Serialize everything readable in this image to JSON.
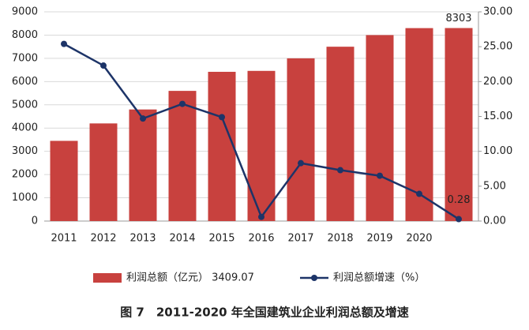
{
  "chart_data": {
    "type": "bar-line",
    "title": "图 7　2011-2020 年全国建筑业企业利润总额及增速",
    "categories": [
      "2011",
      "2012",
      "2013",
      "2014",
      "2015",
      "2016",
      "2017",
      "2018",
      "2019",
      "2020",
      null
    ],
    "series": [
      {
        "name": "利润总额（亿元） 3409.07",
        "type": "bar",
        "color": "#c8413e",
        "values": [
          3450,
          4200,
          4800,
          5600,
          6420,
          6460,
          7000,
          7500,
          8000,
          8300,
          8303
        ]
      },
      {
        "name": "利润总额增速（%）",
        "type": "line",
        "axis": "y2",
        "color": "#1d3468",
        "values": [
          25.4,
          22.3,
          14.7,
          16.8,
          14.9,
          0.6,
          8.3,
          7.3,
          6.5,
          3.9,
          0.28
        ]
      }
    ],
    "ylim": [
      0,
      9000
    ],
    "yticks": [
      0,
      1000,
      2000,
      3000,
      4000,
      5000,
      6000,
      7000,
      8000,
      9000
    ],
    "y2lim": [
      0,
      30
    ],
    "y2ticks": [
      {
        "value": 0,
        "label": "0.00"
      },
      {
        "value": 5,
        "label": "5.00"
      },
      {
        "value": 10,
        "label": "10.00"
      },
      {
        "value": 15,
        "label": "15.00"
      },
      {
        "value": 20,
        "label": "20.00"
      },
      {
        "value": 25,
        "label": "25.00"
      },
      {
        "value": 30,
        "label": "30.00"
      }
    ],
    "grid": true
  }
}
